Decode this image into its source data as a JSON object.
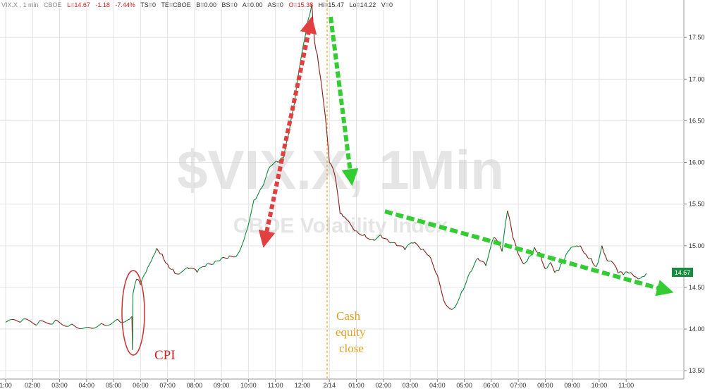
{
  "header": {
    "symbol": "VIX.X , 1 min",
    "exchange": "CBOE",
    "last": "L=14.67",
    "change": "-1.18",
    "change_pct": "-7.44%",
    "ts": "TS=0",
    "te": "TE=CBOE",
    "bid": "B=0.00",
    "bid_size": "BS=0",
    "ask": "A=0.00",
    "ask_size": "AS=0",
    "open": "O=15.38",
    "high": "Hi=15.47",
    "low": "Lo=14.22",
    "volume": "V=0"
  },
  "watermark": {
    "title": "$VIX.X, 1Min",
    "subtitle": "CBOE Volatility Index"
  },
  "annotations": {
    "cpi": "CPI",
    "close_line1": "Cash",
    "close_line2": "equity",
    "close_line3": "close"
  },
  "colors": {
    "up": "#0a8a3a",
    "down": "#8b1a1a",
    "red_arrow": "#e04040",
    "green_arrow": "#33cc33",
    "vline": "#e8a020",
    "cpi_text": "#cc2020",
    "close_text": "#e0a020",
    "price_box": "#1a8a40"
  },
  "chart_data": {
    "type": "line",
    "title": "",
    "ylim": [
      13.4,
      17.95
    ],
    "yticks": [
      "13.50",
      "14.00",
      "14.50",
      "15.00",
      "15.50",
      "16.00",
      "16.50",
      "17.00",
      "17.50"
    ],
    "xticks": [
      "1:00",
      "02:00",
      "03:00",
      "04:00",
      "05:00",
      "06:00",
      "07:00",
      "08:00",
      "09:00",
      "10:00",
      "11:00",
      "12:00",
      "2/14",
      "01:00",
      "02:00",
      "03:00",
      "04:00",
      "05:00",
      "06:00",
      "07:00",
      "08:00",
      "09:00",
      "10:00",
      "11:00"
    ],
    "last_price": "14.67",
    "series": [
      {
        "x": [
          0,
          0.6,
          1.2,
          1.8,
          2.4,
          3,
          3.6,
          4.2,
          4.6,
          4.68,
          4.7,
          4.72,
          4.78,
          4.85,
          5,
          5.2,
          5.4,
          5.6,
          5.8,
          6.0,
          6.2,
          6.35,
          6.5,
          6.8,
          7.1,
          7.4,
          7.7,
          8.0,
          8.3,
          8.6,
          8.9,
          9.2,
          9.5,
          9.8,
          10.1,
          10.3,
          10.5,
          10.7,
          10.85,
          11.0,
          11.2,
          11.35,
          11.45,
          11.55,
          11.7,
          11.85,
          12.0,
          12.2,
          12.4,
          12.5,
          12.7,
          13.0,
          13.3,
          13.6,
          13.9,
          14.2,
          14.5,
          14.8,
          15.1,
          15.4,
          15.7,
          16.0,
          16.3,
          16.6,
          16.9,
          17.2,
          17.5,
          17.8,
          18.1,
          18.4,
          18.6,
          18.8,
          19.0,
          19.2,
          19.4,
          19.6,
          19.8,
          20.0,
          20.2,
          20.35,
          20.5,
          20.7,
          20.9,
          21.1,
          21.3,
          21.5,
          21.7,
          21.9,
          22.1,
          22.3,
          22.5,
          22.7,
          22.9,
          23.1,
          23.3,
          23.45,
          23.6,
          23.75
        ],
        "y": [
          14.08,
          14.1,
          14.07,
          14.09,
          14.05,
          14.02,
          14.06,
          14.1,
          14.12,
          14.15,
          13.75,
          14.42,
          14.52,
          14.6,
          14.53,
          14.68,
          14.82,
          14.97,
          14.9,
          14.78,
          14.72,
          14.66,
          14.68,
          14.72,
          14.68,
          14.75,
          14.78,
          14.85,
          14.88,
          14.9,
          15.15,
          15.55,
          15.7,
          15.95,
          16.0,
          16.05,
          16.35,
          16.7,
          17.05,
          17.35,
          17.7,
          17.9,
          17.45,
          17.3,
          16.95,
          16.55,
          16.0,
          15.85,
          15.38,
          15.35,
          15.3,
          15.18,
          15.14,
          15.08,
          15.13,
          15.05,
          15.0,
          14.95,
          15.03,
          14.95,
          14.88,
          14.65,
          14.3,
          14.25,
          14.45,
          14.68,
          14.85,
          14.76,
          15.1,
          14.93,
          15.42,
          15.1,
          14.9,
          14.78,
          14.87,
          14.98,
          14.92,
          14.72,
          14.8,
          14.68,
          14.7,
          14.82,
          14.95,
          14.99,
          15.0,
          14.9,
          14.85,
          14.75,
          15.0,
          14.82,
          14.8,
          14.67,
          14.65,
          14.67,
          14.63,
          14.6,
          14.63,
          14.67
        ]
      }
    ]
  }
}
